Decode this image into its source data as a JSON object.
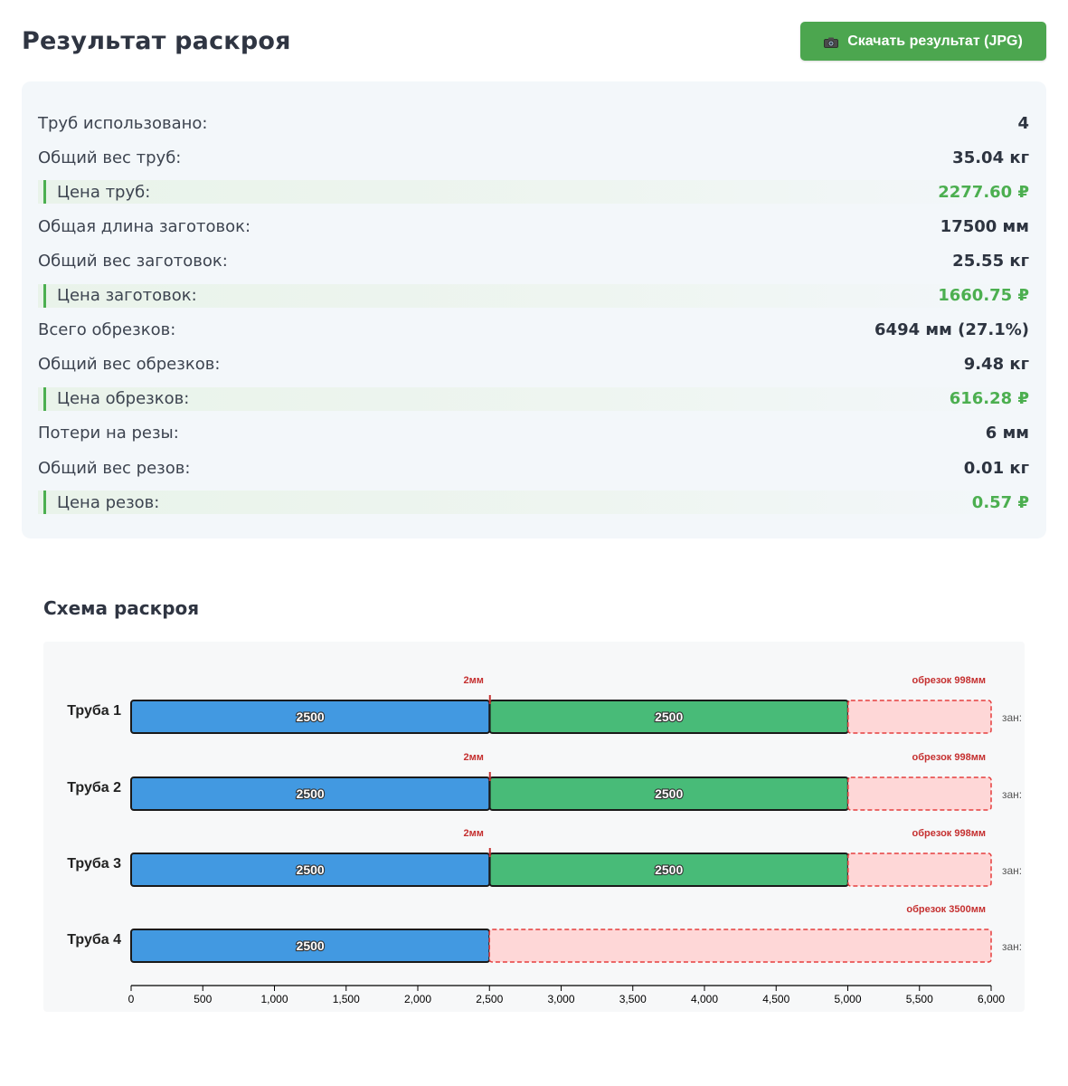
{
  "header": {
    "title": "Результат раскроя",
    "download_button": "Скачать результат (JPG)",
    "download_icon": "camera-icon"
  },
  "stats": [
    {
      "label": "Труб использовано:",
      "value": "4",
      "price": false
    },
    {
      "label": "Общий вес труб:",
      "value": "35.04 кг",
      "price": false
    },
    {
      "label": "Цена труб:",
      "value": "2277.60 ₽",
      "price": true
    },
    {
      "label": "Общая длина заготовок:",
      "value": "17500 мм",
      "price": false
    },
    {
      "label": "Общий вес заготовок:",
      "value": "25.55 кг",
      "price": false
    },
    {
      "label": "Цена заготовок:",
      "value": "1660.75 ₽",
      "price": true
    },
    {
      "label": "Всего обрезков:",
      "value": "6494 мм (27.1%)",
      "price": false
    },
    {
      "label": "Общий вес обрезков:",
      "value": "9.48 кг",
      "price": false
    },
    {
      "label": "Цена обрезков:",
      "value": "616.28 ₽",
      "price": true
    },
    {
      "label": "Потери на резы:",
      "value": "6 мм",
      "price": false
    },
    {
      "label": "Общий вес резов:",
      "value": "0.01 кг",
      "price": false
    },
    {
      "label": "Цена резов:",
      "value": "0.57 ₽",
      "price": true
    }
  ],
  "scheme": {
    "title": "Схема раскроя",
    "colors": {
      "piece_a": "#4299e1",
      "piece_b": "#48bb78",
      "waste_fill": "#fed7d7",
      "waste_stroke": "#e53e3e",
      "cut": "#c53030"
    },
    "x_ticks": [
      0,
      500,
      1000,
      1500,
      2000,
      2500,
      3000,
      3500,
      4000,
      4500,
      5000,
      5500,
      6000
    ],
    "x_tick_labels": [
      "0",
      "500",
      "1,000",
      "1,500",
      "2,000",
      "2,500",
      "3,000",
      "3,500",
      "4,000",
      "4,500",
      "5,000",
      "5,500",
      "6,000"
    ],
    "x_max": 6000,
    "right_label": "зан:",
    "pipes": [
      {
        "label": "Труба 1",
        "pieces": [
          {
            "start": 0,
            "length": 2500,
            "label": "2500",
            "color": "#4299e1"
          },
          {
            "start": 2502,
            "length": 2500,
            "label": "2500",
            "color": "#48bb78"
          }
        ],
        "cut": {
          "at": 2500,
          "label": "2мм"
        },
        "waste": {
          "start": 5002,
          "length": 998,
          "label": "обрезок 998мм"
        }
      },
      {
        "label": "Труба 2",
        "pieces": [
          {
            "start": 0,
            "length": 2500,
            "label": "2500",
            "color": "#4299e1"
          },
          {
            "start": 2502,
            "length": 2500,
            "label": "2500",
            "color": "#48bb78"
          }
        ],
        "cut": {
          "at": 2500,
          "label": "2мм"
        },
        "waste": {
          "start": 5002,
          "length": 998,
          "label": "обрезок 998мм"
        }
      },
      {
        "label": "Труба 3",
        "pieces": [
          {
            "start": 0,
            "length": 2500,
            "label": "2500",
            "color": "#4299e1"
          },
          {
            "start": 2502,
            "length": 2500,
            "label": "2500",
            "color": "#48bb78"
          }
        ],
        "cut": {
          "at": 2500,
          "label": "2мм"
        },
        "waste": {
          "start": 5002,
          "length": 998,
          "label": "обрезок 998мм"
        }
      },
      {
        "label": "Труба 4",
        "pieces": [
          {
            "start": 0,
            "length": 2500,
            "label": "2500",
            "color": "#4299e1"
          }
        ],
        "cut": null,
        "waste": {
          "start": 2500,
          "length": 3500,
          "label": "обрезок 3500мм"
        }
      }
    ]
  }
}
